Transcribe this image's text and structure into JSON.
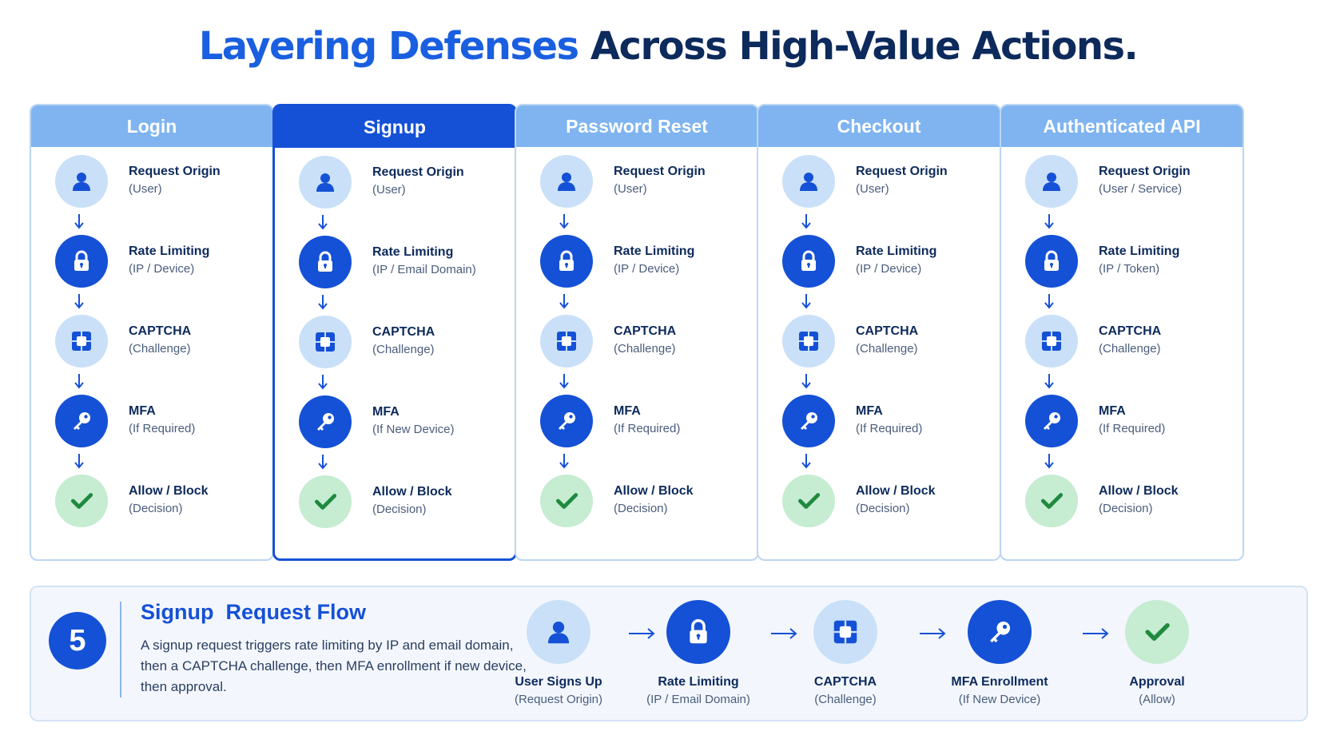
{
  "title": {
    "accent": "Layering Defenses",
    "rest": "Across High-Value Actions."
  },
  "columns": [
    {
      "header": "Login",
      "active": false,
      "steps": [
        {
          "icon": "user-icon",
          "title": "Request Origin",
          "sub": "(User)"
        },
        {
          "icon": "lock-icon",
          "title": "Rate Limiting",
          "sub": "(IP / Device)"
        },
        {
          "icon": "captcha-icon",
          "title": "CAPTCHA",
          "sub": "(Challenge)"
        },
        {
          "icon": "key-icon",
          "title": "MFA",
          "sub": "(If Required)"
        },
        {
          "icon": "check-icon",
          "title": "Allow / Block",
          "sub": "(Decision)"
        }
      ]
    },
    {
      "header": "Signup",
      "active": true,
      "steps": [
        {
          "icon": "user-icon",
          "title": "Request Origin",
          "sub": "(User)"
        },
        {
          "icon": "lock-icon",
          "title": "Rate Limiting",
          "sub": "(IP / Email Domain)"
        },
        {
          "icon": "captcha-icon",
          "title": "CAPTCHA",
          "sub": "(Challenge)"
        },
        {
          "icon": "key-icon",
          "title": "MFA",
          "sub": "(If New Device)"
        },
        {
          "icon": "check-icon",
          "title": "Allow / Block",
          "sub": "(Decision)"
        }
      ]
    },
    {
      "header": "Password Reset",
      "active": false,
      "steps": [
        {
          "icon": "user-icon",
          "title": "Request Origin",
          "sub": "(User)"
        },
        {
          "icon": "lock-icon",
          "title": "Rate Limiting",
          "sub": "(IP / Device)"
        },
        {
          "icon": "captcha-icon",
          "title": "CAPTCHA",
          "sub": "(Challenge)"
        },
        {
          "icon": "key-icon",
          "title": "MFA",
          "sub": "(If Required)"
        },
        {
          "icon": "check-icon",
          "title": "Allow / Block",
          "sub": "(Decision)"
        }
      ]
    },
    {
      "header": "Checkout",
      "active": false,
      "steps": [
        {
          "icon": "user-icon",
          "title": "Request Origin",
          "sub": "(User)"
        },
        {
          "icon": "lock-icon",
          "title": "Rate Limiting",
          "sub": "(IP / Device)"
        },
        {
          "icon": "captcha-icon",
          "title": "CAPTCHA",
          "sub": "(Challenge)"
        },
        {
          "icon": "key-icon",
          "title": "MFA",
          "sub": "(If Required)"
        },
        {
          "icon": "check-icon",
          "title": "Allow / Block",
          "sub": "(Decision)"
        }
      ]
    },
    {
      "header": "Authenticated API",
      "active": false,
      "steps": [
        {
          "icon": "user-icon",
          "title": "Request Origin",
          "sub": "(User / Service)"
        },
        {
          "icon": "lock-icon",
          "title": "Rate Limiting",
          "sub": "(IP / Token)"
        },
        {
          "icon": "captcha-icon",
          "title": "CAPTCHA",
          "sub": "(Challenge)"
        },
        {
          "icon": "key-icon",
          "title": "MFA",
          "sub": "(If Required)"
        },
        {
          "icon": "check-icon",
          "title": "Allow / Block",
          "sub": "(Decision)"
        }
      ]
    }
  ],
  "flow": {
    "badge": "5",
    "title": "Signup  Request Flow",
    "description": "A signup request triggers rate limiting by IP and email domain, then a CAPTCHA challenge, then MFA enrollment if new device, then approval.",
    "steps": [
      {
        "icon": "user-icon",
        "title": "User Signs Up",
        "sub": "(Request Origin)"
      },
      {
        "icon": "lock-icon",
        "title": "Rate Limiting",
        "sub": "(IP / Email Domain)"
      },
      {
        "icon": "captcha-icon",
        "title": "CAPTCHA",
        "sub": "(Challenge)"
      },
      {
        "icon": "key-icon",
        "title": "MFA Enrollment",
        "sub": "(If New Device)"
      },
      {
        "icon": "check-icon",
        "title": "Approval",
        "sub": "(Allow)"
      }
    ]
  },
  "colors": {
    "primary": "#1551d6",
    "header_light": "#7fb4f0",
    "icon_light": "#c9e0f8",
    "icon_green": "#c6ecd2",
    "check": "#1f8a3e"
  }
}
